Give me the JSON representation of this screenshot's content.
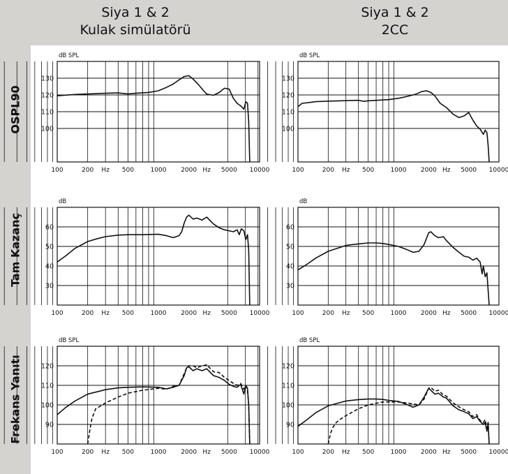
{
  "header": {
    "col1_line1": "Siya 1 & 2",
    "col1_line2": "Kulak simülatörü",
    "col2_line1": "Siya 1 & 2",
    "col2_line2": "2CC"
  },
  "rows": {
    "row1": "OSPL90",
    "row2": "Tam Kazanç",
    "row3": "Frekans Yanıtı"
  },
  "chart_data": [
    {
      "type": "line",
      "x_scale": "log",
      "xlim": [
        100,
        10000
      ],
      "ylim": [
        80,
        140
      ],
      "grid": true,
      "ylabel": "dB SPL",
      "y_ticks": [
        100,
        110,
        120,
        130
      ],
      "x_tick_labels": [
        "100",
        "200",
        "Hz",
        "500",
        "1000",
        "2000",
        "Hz",
        "5000",
        "10000"
      ],
      "series": [
        {
          "style": "solid",
          "x": [
            100,
            150,
            200,
            300,
            400,
            500,
            600,
            700,
            800,
            1000,
            1200,
            1400,
            1600,
            1800,
            2000,
            2200,
            2500,
            2800,
            3000,
            3500,
            4000,
            4500,
            5000,
            5500,
            6000,
            6500,
            7000,
            7300,
            7600,
            7800,
            8000
          ],
          "y": [
            119.5,
            120.3,
            120.6,
            121,
            121.2,
            120.6,
            121,
            121.3,
            121.5,
            122.5,
            124.5,
            126.5,
            129,
            131,
            131.5,
            129.5,
            126,
            122.5,
            120.5,
            119.8,
            121.5,
            124,
            123.5,
            118,
            115,
            113.5,
            111.5,
            116,
            115,
            104,
            80
          ]
        }
      ]
    },
    {
      "type": "line",
      "x_scale": "log",
      "xlim": [
        100,
        10000
      ],
      "ylim": [
        80,
        140
      ],
      "grid": true,
      "ylabel": "dB SPL",
      "y_ticks": [
        100,
        110,
        120,
        130
      ],
      "x_tick_labels": [
        "100",
        "200",
        "Hz",
        "500",
        "1000",
        "2000",
        "Hz",
        "5000",
        "10000"
      ],
      "series": [
        {
          "style": "solid",
          "x": [
            100,
            110,
            130,
            150,
            200,
            300,
            400,
            450,
            500,
            600,
            700,
            800,
            1000,
            1200,
            1500,
            1700,
            1900,
            2100,
            2300,
            2600,
            3000,
            3500,
            4000,
            4500,
            5000,
            5500,
            6000,
            6500,
            7000,
            7300,
            7600,
            7800,
            8000
          ],
          "y": [
            113,
            115,
            115.5,
            116,
            116.3,
            116.6,
            116.8,
            116.2,
            116.5,
            116.8,
            117,
            117.2,
            118,
            119,
            120.5,
            122,
            122.5,
            121.5,
            119.5,
            115,
            112.5,
            108.5,
            106.5,
            107.5,
            109.5,
            105,
            101.5,
            99.5,
            96.5,
            99,
            97.5,
            90,
            80
          ]
        }
      ]
    },
    {
      "type": "line",
      "x_scale": "log",
      "xlim": [
        100,
        10000
      ],
      "ylim": [
        20,
        70
      ],
      "grid": true,
      "ylabel": "dB",
      "y_ticks": [
        30,
        40,
        50,
        60
      ],
      "x_tick_labels": [
        "100",
        "200",
        "Hz",
        "500",
        "1000",
        "2000",
        "Hz",
        "5000",
        "10000"
      ],
      "series": [
        {
          "style": "solid",
          "x": [
            100,
            120,
            150,
            200,
            250,
            300,
            400,
            500,
            700,
            1000,
            1200,
            1400,
            1600,
            1700,
            1800,
            1900,
            2000,
            2200,
            2400,
            2700,
            3000,
            3500,
            4000,
            4500,
            5000,
            5500,
            6000,
            6300,
            6600,
            7000,
            7300,
            7600,
            7800,
            8000
          ],
          "y": [
            42,
            45,
            49,
            52.5,
            54,
            55,
            55.8,
            56,
            56,
            56.2,
            55.5,
            54.5,
            55.5,
            57.5,
            62,
            65,
            66,
            64,
            64.5,
            63.5,
            65,
            61.5,
            59.5,
            58.5,
            58,
            57.5,
            58.5,
            56,
            59,
            58,
            53.5,
            56,
            48,
            20
          ]
        }
      ]
    },
    {
      "type": "line",
      "x_scale": "log",
      "xlim": [
        100,
        10000
      ],
      "ylim": [
        20,
        70
      ],
      "grid": true,
      "ylabel": "dB",
      "y_ticks": [
        30,
        40,
        50,
        60
      ],
      "x_tick_labels": [
        "100",
        "200",
        "Hz",
        "500",
        "1000",
        "2000",
        "Hz",
        "5000",
        "10000"
      ],
      "series": [
        {
          "style": "solid",
          "x": [
            100,
            120,
            150,
            200,
            300,
            400,
            500,
            600,
            700,
            800,
            1000,
            1200,
            1400,
            1600,
            1800,
            1900,
            2000,
            2100,
            2300,
            2500,
            2800,
            3000,
            3500,
            4000,
            4500,
            5000,
            5500,
            6000,
            6500,
            6800,
            7000,
            7300,
            7600,
            8000
          ],
          "y": [
            38,
            40.5,
            44,
            47.5,
            50.5,
            51.3,
            51.8,
            51.8,
            51.5,
            51,
            50,
            48.5,
            47,
            47.5,
            51,
            54,
            57,
            57.5,
            55.5,
            54.5,
            55,
            53,
            49.5,
            47,
            45,
            44.5,
            43,
            44,
            42,
            36,
            40,
            34.5,
            36.5,
            20
          ]
        }
      ]
    },
    {
      "type": "line",
      "x_scale": "log",
      "xlim": [
        100,
        10000
      ],
      "ylim": [
        80,
        130
      ],
      "grid": true,
      "ylabel": "dB SPL",
      "y_ticks": [
        90,
        100,
        110,
        120
      ],
      "x_tick_labels": [
        "100",
        "200",
        "Hz",
        "500",
        "1000",
        "2000",
        "Hz",
        "5000",
        "10000"
      ],
      "series": [
        {
          "style": "solid",
          "x": [
            100,
            120,
            150,
            200,
            300,
            400,
            500,
            700,
            1000,
            1200,
            1400,
            1600,
            1800,
            1900,
            2000,
            2200,
            2400,
            2700,
            3000,
            3500,
            4000,
            4500,
            5000,
            5500,
            6000,
            6500,
            7000,
            7300,
            7600,
            7800,
            8000
          ],
          "y": [
            95,
            98.5,
            102,
            105.5,
            107.8,
            108.7,
            109,
            109.2,
            109,
            108.2,
            109,
            110,
            115,
            119,
            119.5,
            117.5,
            118.5,
            117.5,
            118.5,
            115,
            114,
            112.5,
            110.5,
            109.5,
            109,
            110.5,
            105.5,
            110,
            108.5,
            100,
            80
          ]
        },
        {
          "style": "dashed",
          "x": [
            200,
            210,
            220,
            240,
            270,
            300,
            400,
            500,
            700,
            1000,
            1200,
            1400,
            1600,
            1800,
            1900,
            2000,
            2200,
            2400,
            2700,
            3000,
            3500,
            4000,
            4500,
            5000,
            5500,
            6000,
            6500,
            7000,
            7300,
            7600,
            7800,
            8000
          ],
          "y": [
            80,
            87,
            93,
            98,
            99.5,
            101,
            104,
            106,
            107.5,
            108.5,
            108,
            109.5,
            110,
            116,
            119,
            120,
            120,
            119,
            120,
            120.5,
            117,
            116.5,
            114,
            112.5,
            111,
            110,
            111,
            108,
            110,
            107,
            100,
            80
          ]
        }
      ]
    },
    {
      "type": "line",
      "x_scale": "log",
      "xlim": [
        100,
        10000
      ],
      "ylim": [
        80,
        130
      ],
      "grid": true,
      "ylabel": "dB SPL",
      "y_ticks": [
        90,
        100,
        110,
        120
      ],
      "x_tick_labels": [
        "100",
        "200",
        "Hz",
        "500",
        "1000",
        "2000",
        "Hz",
        "5000",
        "10000"
      ],
      "series": [
        {
          "style": "solid",
          "x": [
            100,
            120,
            150,
            200,
            300,
            400,
            500,
            600,
            700,
            800,
            1000,
            1200,
            1400,
            1600,
            1800,
            2000,
            2100,
            2300,
            2500,
            2800,
            3000,
            3500,
            4000,
            4500,
            5000,
            5500,
            6000,
            6500,
            7000,
            7300,
            7600,
            7800,
            8000
          ],
          "y": [
            89,
            92,
            96,
            99.5,
            102,
            102.7,
            103,
            103,
            102.8,
            102.3,
            101.8,
            100.3,
            98.8,
            100,
            104,
            108.5,
            107.5,
            105.5,
            106,
            104,
            103.5,
            99.5,
            97.5,
            96.5,
            95.5,
            93,
            94,
            91.5,
            90,
            91,
            86.5,
            91,
            80
          ]
        },
        {
          "style": "dashed",
          "x": [
            200,
            210,
            220,
            240,
            270,
            300,
            400,
            500,
            700,
            1000,
            1200,
            1400,
            1600,
            1800,
            2000,
            2100,
            2300,
            2500,
            2800,
            3000,
            3500,
            4000,
            4500,
            5000,
            5500,
            6000,
            6500,
            7000,
            7300,
            7600,
            7800,
            8000
          ],
          "y": [
            80,
            85,
            88,
            91,
            93,
            94.5,
            98,
            100,
            101.5,
            101.5,
            101,
            100.5,
            100,
            103,
            108.5,
            109,
            107,
            107.5,
            105,
            104.5,
            101,
            99,
            97.5,
            96.5,
            94,
            95,
            92,
            91,
            92.5,
            88,
            91,
            80
          ]
        }
      ]
    }
  ]
}
